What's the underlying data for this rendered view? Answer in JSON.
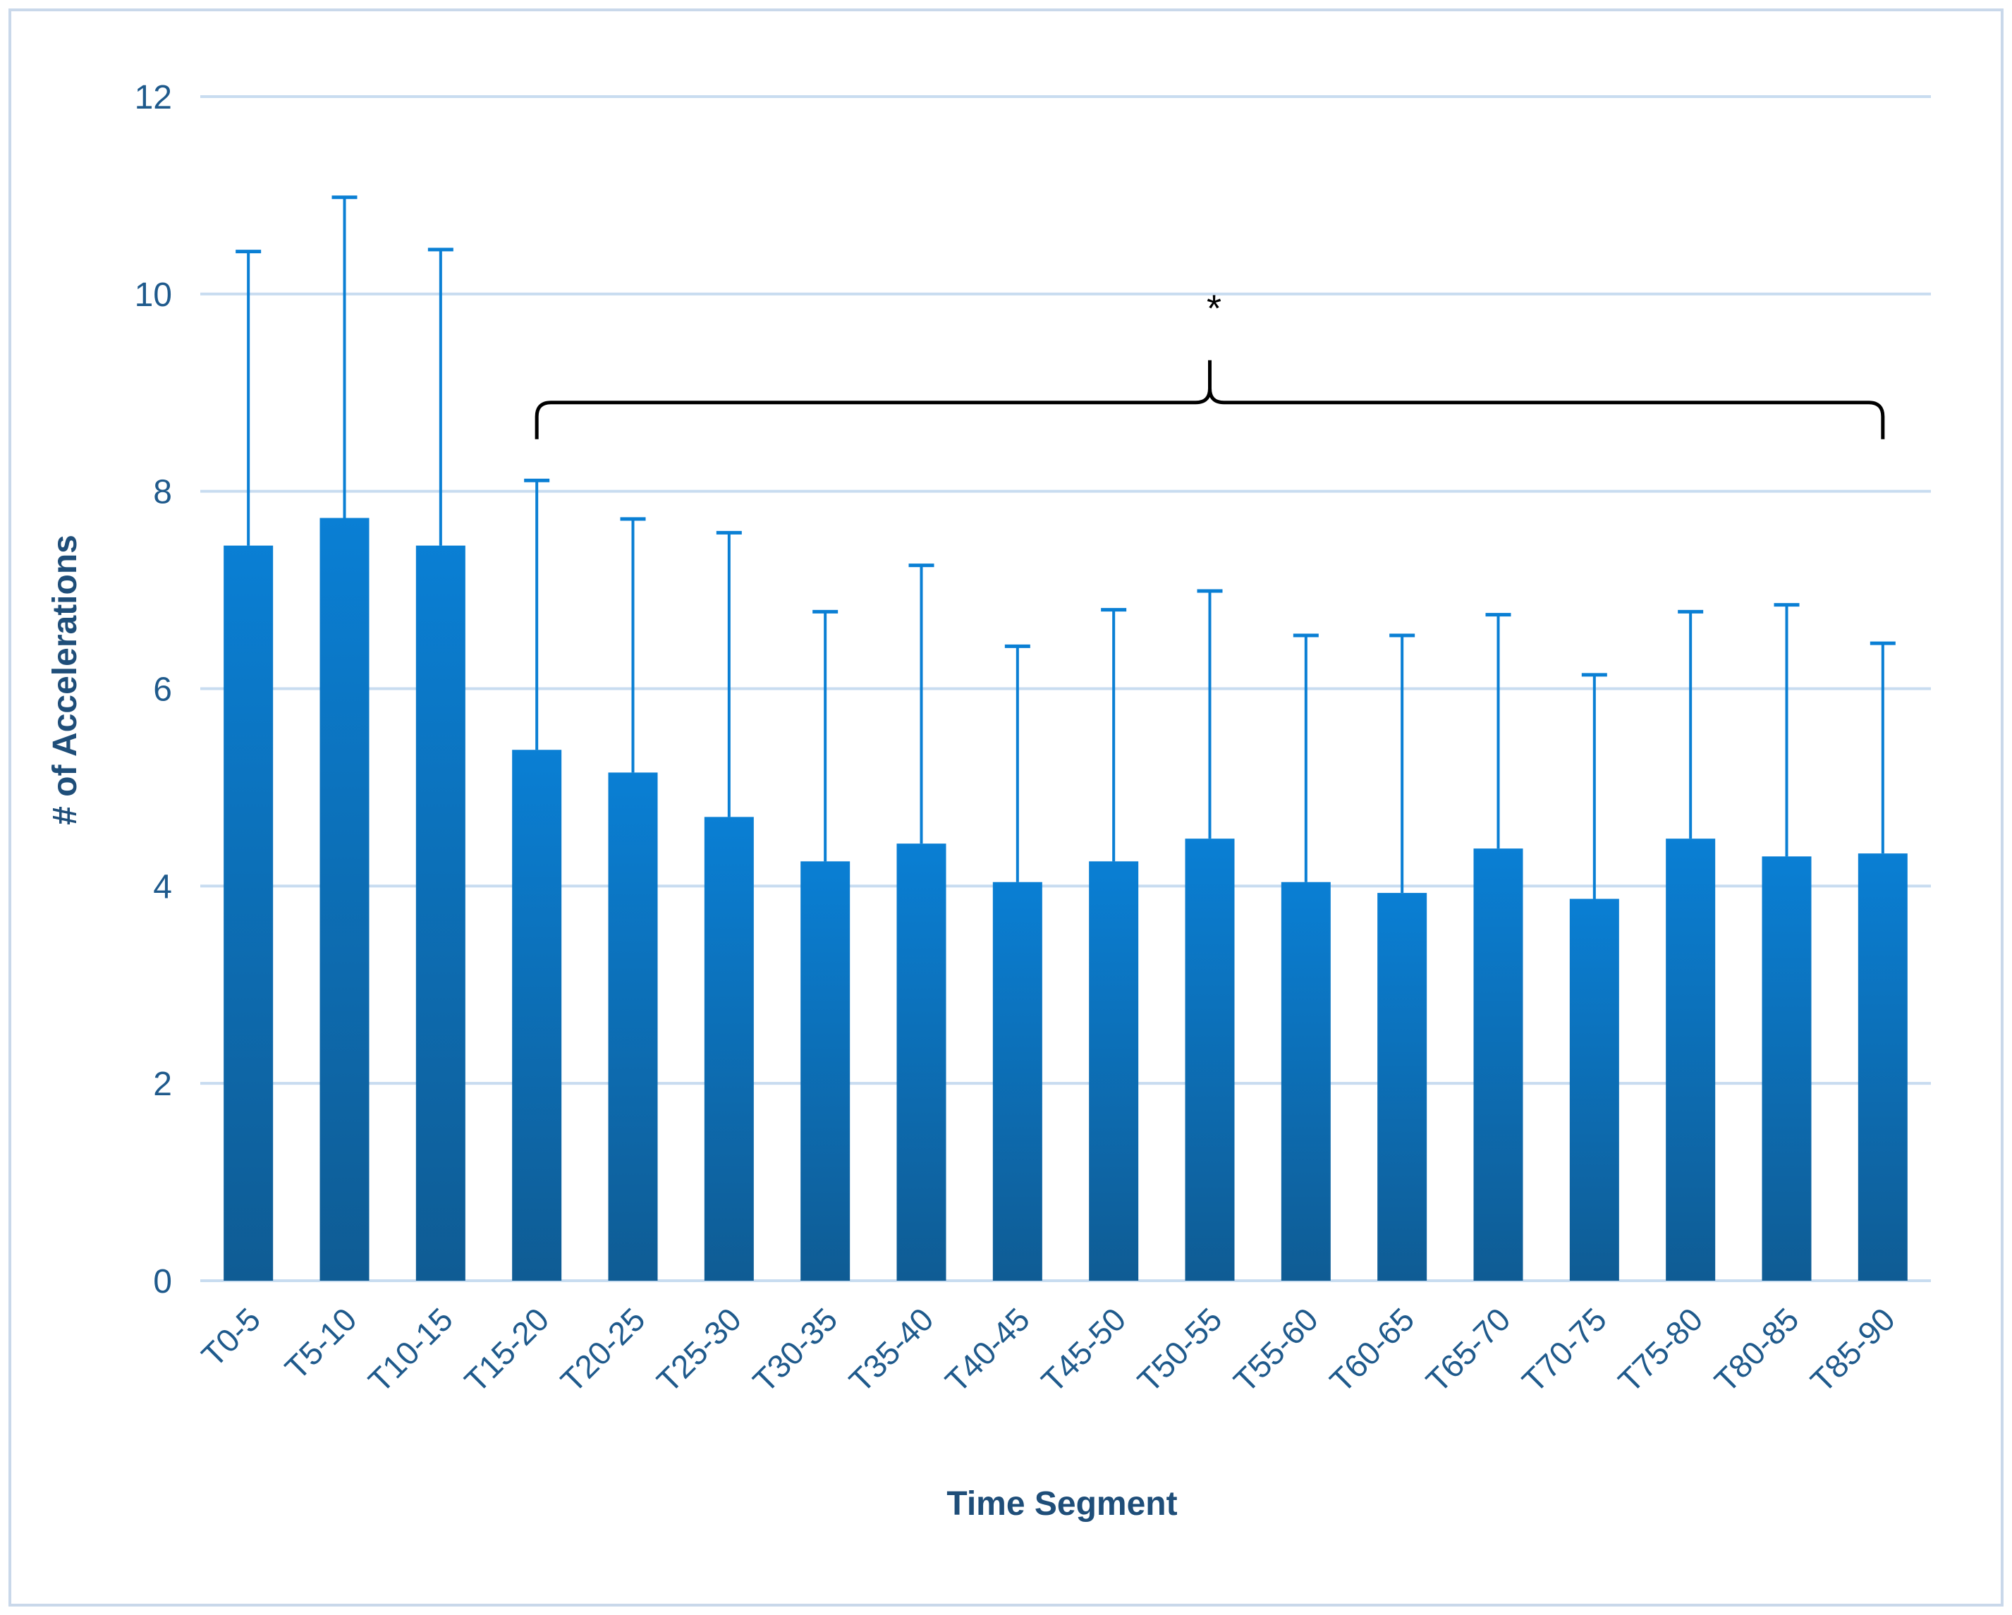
{
  "chart_data": {
    "type": "bar",
    "title": "",
    "xlabel": "Time Segment",
    "ylabel": "# of Accelerations",
    "ylim": [
      0,
      12
    ],
    "yticks": [
      0,
      2,
      4,
      6,
      8,
      10,
      12
    ],
    "grid": true,
    "legend": "none",
    "categories": [
      "T0-5",
      "T5-10",
      "T10-15",
      "T15-20",
      "T20-25",
      "T25-30",
      "T30-35",
      "T35-40",
      "T40-45",
      "T45-50",
      "T50-55",
      "T55-60",
      "T60-65",
      "T65-70",
      "T70-75",
      "T75-80",
      "T80-85",
      "T85-90"
    ],
    "values": [
      7.45,
      7.73,
      7.45,
      5.38,
      5.15,
      4.7,
      4.25,
      4.43,
      4.04,
      4.25,
      4.48,
      4.04,
      3.93,
      4.38,
      3.87,
      4.48,
      4.3,
      4.33
    ],
    "error_upper": [
      10.43,
      10.98,
      10.45,
      8.11,
      7.72,
      7.58,
      6.78,
      7.25,
      6.43,
      6.8,
      6.99,
      6.54,
      6.54,
      6.75,
      6.14,
      6.78,
      6.85,
      6.46
    ],
    "annotation": {
      "text": "*",
      "spans": [
        "T15-20",
        "T85-90"
      ],
      "bracket_y": 8.9
    },
    "colors": {
      "bar_top": "#0a7fd4",
      "bar_bottom": "#0f5c94",
      "error_bar": "#0a7fd4",
      "grid": "#c8dcf0",
      "axis_text": "#1f5a8c",
      "axis_title": "#1f4e79",
      "bracket": "#000000"
    }
  }
}
